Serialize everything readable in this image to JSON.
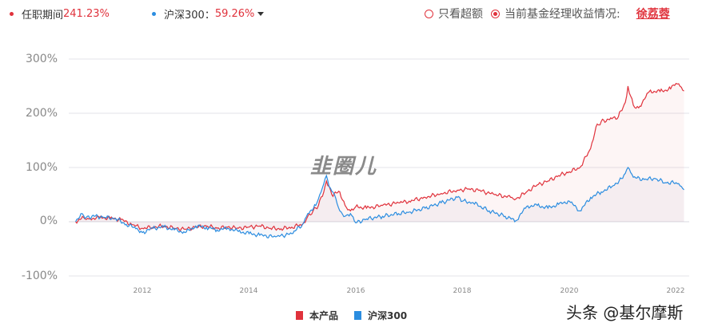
{
  "header": {
    "series_a_label": "任职期间",
    "series_a_value": "241.23%",
    "series_b_label": "沪深300：",
    "series_b_value": "59.26%",
    "option_excess": "只看超额",
    "option_manager": "当前基金经理收益情况:",
    "manager_name": "徐荔蓉",
    "option_excess_selected": false,
    "option_manager_selected": true
  },
  "watermark_logo": "韭圈儿",
  "watermark_credit": "头条 @基尔摩斯",
  "colors": {
    "product": "#e0323c",
    "index": "#2b8de0",
    "grid": "#e3e3ea",
    "axis_text": "#888888"
  },
  "chart_data": {
    "type": "line",
    "title": "",
    "xlabel": "",
    "ylabel": "",
    "ylim": [
      -100,
      300
    ],
    "xlim": [
      2010.75,
      2022.2
    ],
    "grid": true,
    "legend_position": "bottom",
    "yticks": [
      "300%",
      "200%",
      "100%",
      "0%",
      "-100%"
    ],
    "ytick_values": [
      300,
      200,
      100,
      0,
      -100
    ],
    "xticks": [
      "2012",
      "2014",
      "2016",
      "2018",
      "2020",
      "2022"
    ],
    "xtick_values": [
      2012,
      2014,
      2016,
      2018,
      2020,
      2022
    ],
    "legend": [
      "本产品",
      "沪深300"
    ],
    "series": [
      {
        "name": "本产品",
        "color": "#e0323c",
        "points": [
          [
            2010.75,
            0
          ],
          [
            2010.9,
            8
          ],
          [
            2011.0,
            5
          ],
          [
            2011.2,
            8
          ],
          [
            2011.4,
            6
          ],
          [
            2011.6,
            4
          ],
          [
            2011.8,
            -5
          ],
          [
            2012.0,
            -12
          ],
          [
            2012.2,
            -10
          ],
          [
            2012.4,
            -8
          ],
          [
            2012.6,
            -12
          ],
          [
            2012.8,
            -14
          ],
          [
            2013.0,
            -10
          ],
          [
            2013.2,
            -8
          ],
          [
            2013.4,
            -12
          ],
          [
            2013.6,
            -10
          ],
          [
            2013.8,
            -12
          ],
          [
            2014.0,
            -10
          ],
          [
            2014.2,
            -8
          ],
          [
            2014.4,
            -12
          ],
          [
            2014.6,
            -13
          ],
          [
            2014.8,
            -10
          ],
          [
            2015.0,
            -5
          ],
          [
            2015.1,
            10
          ],
          [
            2015.2,
            20
          ],
          [
            2015.3,
            30
          ],
          [
            2015.4,
            55
          ],
          [
            2015.45,
            75
          ],
          [
            2015.55,
            50
          ],
          [
            2015.7,
            55
          ],
          [
            2015.8,
            30
          ],
          [
            2015.9,
            20
          ],
          [
            2016.0,
            28
          ],
          [
            2016.2,
            25
          ],
          [
            2016.5,
            30
          ],
          [
            2016.8,
            35
          ],
          [
            2017.0,
            38
          ],
          [
            2017.3,
            45
          ],
          [
            2017.6,
            52
          ],
          [
            2017.9,
            58
          ],
          [
            2018.1,
            60
          ],
          [
            2018.3,
            58
          ],
          [
            2018.6,
            50
          ],
          [
            2018.9,
            45
          ],
          [
            2019.0,
            42
          ],
          [
            2019.2,
            55
          ],
          [
            2019.4,
            68
          ],
          [
            2019.6,
            75
          ],
          [
            2019.8,
            85
          ],
          [
            2020.0,
            92
          ],
          [
            2020.2,
            100
          ],
          [
            2020.4,
            135
          ],
          [
            2020.5,
            175
          ],
          [
            2020.6,
            185
          ],
          [
            2020.8,
            190
          ],
          [
            2020.9,
            190
          ],
          [
            2021.05,
            220
          ],
          [
            2021.1,
            250
          ],
          [
            2021.2,
            215
          ],
          [
            2021.3,
            210
          ],
          [
            2021.5,
            240
          ],
          [
            2021.7,
            240
          ],
          [
            2021.9,
            245
          ],
          [
            2022.0,
            255
          ],
          [
            2022.1,
            248
          ],
          [
            2022.15,
            241
          ]
        ]
      },
      {
        "name": "沪深300",
        "color": "#2b8de0",
        "points": [
          [
            2010.75,
            0
          ],
          [
            2010.85,
            15
          ],
          [
            2010.95,
            8
          ],
          [
            2011.1,
            10
          ],
          [
            2011.3,
            8
          ],
          [
            2011.5,
            6
          ],
          [
            2011.7,
            -5
          ],
          [
            2011.9,
            -12
          ],
          [
            2012.0,
            -20
          ],
          [
            2012.2,
            -12
          ],
          [
            2012.4,
            -10
          ],
          [
            2012.6,
            -15
          ],
          [
            2012.8,
            -20
          ],
          [
            2013.0,
            -8
          ],
          [
            2013.2,
            -10
          ],
          [
            2013.4,
            -15
          ],
          [
            2013.6,
            -12
          ],
          [
            2013.8,
            -18
          ],
          [
            2014.0,
            -22
          ],
          [
            2014.2,
            -25
          ],
          [
            2014.5,
            -28
          ],
          [
            2014.8,
            -22
          ],
          [
            2015.0,
            -5
          ],
          [
            2015.1,
            15
          ],
          [
            2015.25,
            30
          ],
          [
            2015.35,
            55
          ],
          [
            2015.45,
            85
          ],
          [
            2015.5,
            65
          ],
          [
            2015.6,
            50
          ],
          [
            2015.7,
            20
          ],
          [
            2015.8,
            10
          ],
          [
            2015.9,
            15
          ],
          [
            2016.0,
            -2
          ],
          [
            2016.2,
            5
          ],
          [
            2016.5,
            10
          ],
          [
            2016.8,
            15
          ],
          [
            2017.0,
            18
          ],
          [
            2017.3,
            25
          ],
          [
            2017.6,
            35
          ],
          [
            2017.9,
            45
          ],
          [
            2018.0,
            38
          ],
          [
            2018.2,
            35
          ],
          [
            2018.5,
            20
          ],
          [
            2018.8,
            10
          ],
          [
            2019.0,
            2
          ],
          [
            2019.2,
            28
          ],
          [
            2019.4,
            30
          ],
          [
            2019.6,
            25
          ],
          [
            2019.8,
            32
          ],
          [
            2020.0,
            38
          ],
          [
            2020.2,
            20
          ],
          [
            2020.4,
            45
          ],
          [
            2020.6,
            55
          ],
          [
            2020.8,
            65
          ],
          [
            2021.0,
            80
          ],
          [
            2021.1,
            100
          ],
          [
            2021.2,
            82
          ],
          [
            2021.4,
            78
          ],
          [
            2021.6,
            80
          ],
          [
            2021.8,
            72
          ],
          [
            2022.0,
            72
          ],
          [
            2022.1,
            65
          ],
          [
            2022.15,
            59
          ]
        ]
      }
    ]
  }
}
